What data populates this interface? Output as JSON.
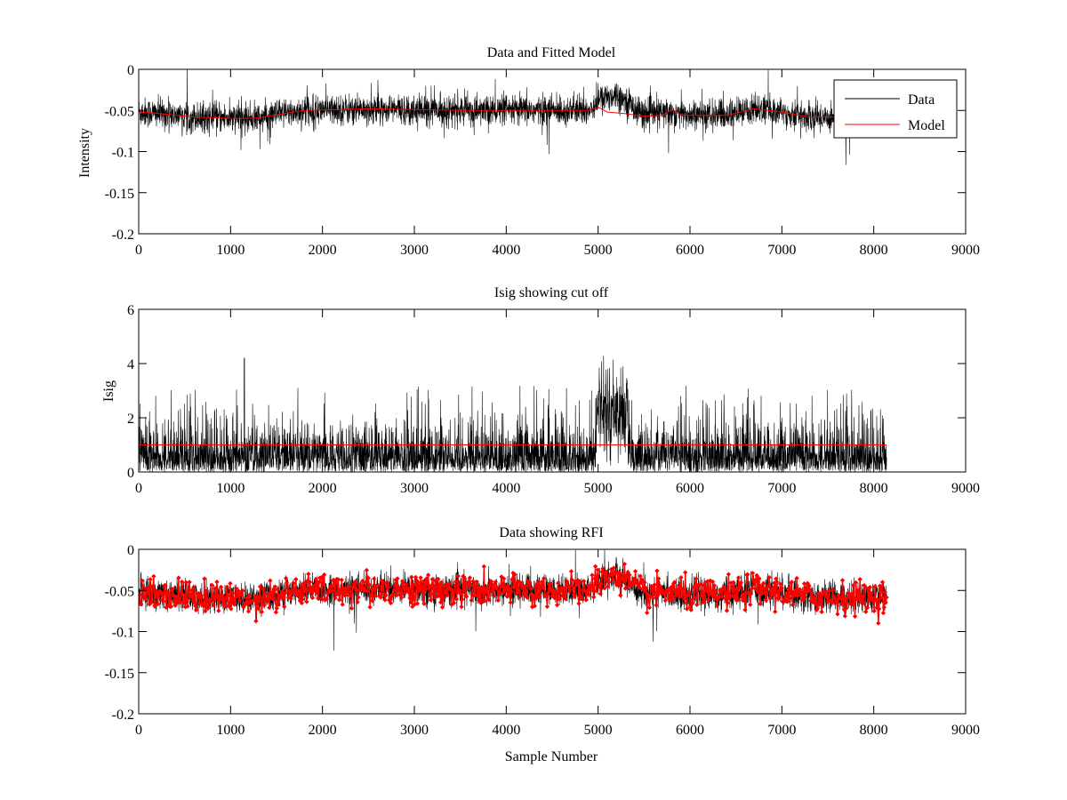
{
  "figure": {
    "background": "#ffffff",
    "data_color": "#000000",
    "model_color": "#ff0000"
  },
  "chart_data": [
    {
      "type": "line",
      "title": "Data and Fitted Model",
      "xlabel": "",
      "ylabel": "Intensity",
      "xlim": [
        0,
        9000
      ],
      "ylim": [
        -0.2,
        0
      ],
      "xticks": [
        "0",
        "1000",
        "2000",
        "3000",
        "4000",
        "5000",
        "6000",
        "7000",
        "8000",
        "9000"
      ],
      "yticks": [
        "0",
        "-0.05",
        "-0.1",
        "-0.15",
        "-0.2"
      ],
      "grid": false,
      "legend": {
        "position": "top-right",
        "entries": [
          "Data",
          "Model"
        ]
      },
      "series": [
        {
          "name": "Data",
          "color": "#000000",
          "style": "noisy-line",
          "x": [
            0,
            150,
            600,
            1100,
            1300,
            1800,
            2500,
            3500,
            4500,
            4900,
            5000,
            5200,
            5300,
            5500,
            5800,
            6000,
            6400,
            6700,
            7000,
            7300,
            7800,
            8140
          ],
          "y": [
            -0.052,
            -0.053,
            -0.058,
            -0.06,
            -0.059,
            -0.05,
            -0.048,
            -0.05,
            -0.05,
            -0.05,
            -0.038,
            -0.03,
            -0.038,
            -0.055,
            -0.052,
            -0.056,
            -0.056,
            -0.048,
            -0.052,
            -0.058,
            -0.058,
            -0.058
          ],
          "noise": 0.012,
          "samples": 8140
        },
        {
          "name": "Model",
          "color": "#ff0000",
          "x": [
            0,
            150,
            600,
            1100,
            1300,
            1800,
            2500,
            3500,
            4500,
            4900,
            5000,
            5100,
            5300,
            5500,
            5700,
            5800,
            5900,
            6000,
            6400,
            6700,
            7000,
            7300,
            7800,
            8140
          ],
          "y": [
            -0.052,
            -0.053,
            -0.058,
            -0.06,
            -0.059,
            -0.05,
            -0.048,
            -0.05,
            -0.05,
            -0.05,
            -0.046,
            -0.052,
            -0.054,
            -0.057,
            -0.056,
            -0.049,
            -0.055,
            -0.056,
            -0.056,
            -0.048,
            -0.052,
            -0.058,
            -0.058,
            -0.058
          ]
        }
      ]
    },
    {
      "type": "line",
      "title": "Isig showing cut off",
      "xlabel": "",
      "ylabel": "Isig",
      "xlim": [
        0,
        9000
      ],
      "ylim": [
        0,
        6
      ],
      "xticks": [
        "0",
        "1000",
        "2000",
        "3000",
        "4000",
        "5000",
        "6000",
        "7000",
        "8000",
        "9000"
      ],
      "yticks": [
        "0",
        "2",
        "4",
        "6"
      ],
      "grid": false,
      "series": [
        {
          "color": "#000000",
          "style": "abs-noise",
          "x": [
            0,
            8140
          ],
          "level": 0.8,
          "spike_max": 3.2,
          "bump": {
            "x": [
              4980,
              5320
            ],
            "level": 2.3,
            "max": 4.3
          },
          "peak": {
            "x": 1150,
            "y": 4.2
          },
          "samples": 8140
        },
        {
          "color": "#ff0000",
          "x": [
            0,
            8140
          ],
          "y": [
            1.0,
            1.0
          ]
        }
      ]
    },
    {
      "type": "scatter",
      "title": "Data showing RFI",
      "xlabel": "Sample Number",
      "ylabel": "",
      "xlim": [
        0,
        9000
      ],
      "ylim": [
        -0.2,
        0
      ],
      "xticks": [
        "0",
        "1000",
        "2000",
        "3000",
        "4000",
        "5000",
        "6000",
        "7000",
        "8000",
        "9000"
      ],
      "yticks": [
        "0",
        "-0.05",
        "-0.1",
        "-0.15",
        "-0.2"
      ],
      "grid": false,
      "series": [
        {
          "color": "#000000",
          "style": "noisy-line",
          "x": [
            0,
            150,
            600,
            1100,
            1300,
            1800,
            2500,
            3500,
            4500,
            4900,
            5000,
            5200,
            5300,
            5500,
            5800,
            6000,
            6400,
            6700,
            7000,
            7300,
            7800,
            8140
          ],
          "y": [
            -0.052,
            -0.053,
            -0.058,
            -0.06,
            -0.059,
            -0.05,
            -0.048,
            -0.05,
            -0.05,
            -0.05,
            -0.038,
            -0.03,
            -0.038,
            -0.055,
            -0.052,
            -0.056,
            -0.056,
            -0.048,
            -0.052,
            -0.058,
            -0.058,
            -0.058
          ],
          "noise": 0.012
        },
        {
          "color": "#ff0000",
          "style": "markers",
          "marker": "diamond",
          "x": [
            0,
            150,
            600,
            1100,
            1300,
            1800,
            2500,
            3500,
            4500,
            4900,
            5000,
            5200,
            5300,
            5500,
            5800,
            6000,
            6400,
            6700,
            7000,
            7300,
            7800,
            8140
          ],
          "y": [
            -0.052,
            -0.053,
            -0.058,
            -0.06,
            -0.059,
            -0.05,
            -0.048,
            -0.05,
            -0.05,
            -0.05,
            -0.038,
            -0.03,
            -0.038,
            -0.055,
            -0.052,
            -0.056,
            -0.056,
            -0.048,
            -0.052,
            -0.058,
            -0.058,
            -0.058
          ],
          "noise": 0.012,
          "count": 900
        }
      ]
    }
  ]
}
